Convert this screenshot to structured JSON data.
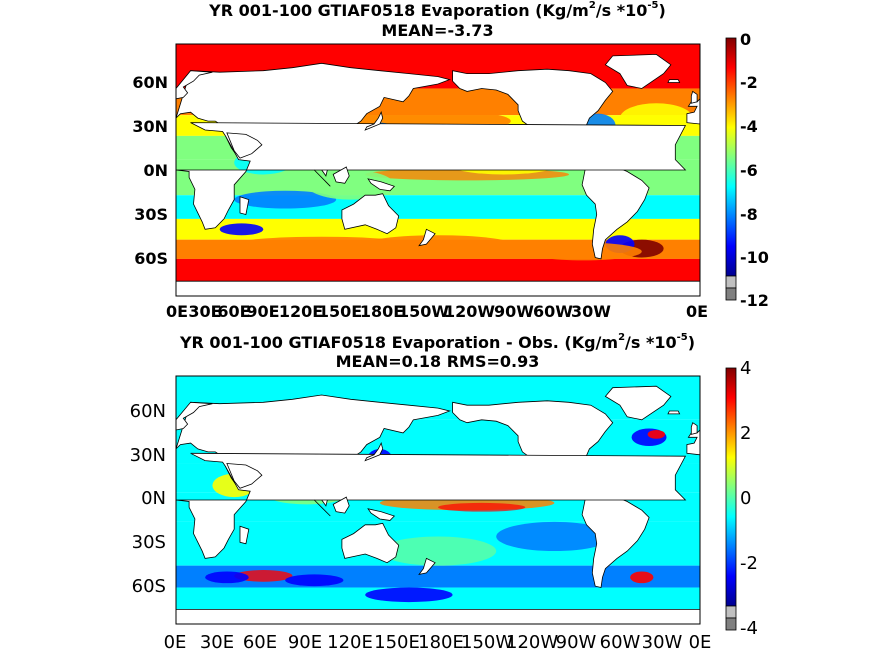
{
  "panel1": {
    "title_prefix": "YR 001-100 GTIAF0518  Evaporation (Kg/m",
    "title_sup1": "2",
    "title_mid": "/s *10",
    "title_sup2": "-5",
    "title_suffix": ")",
    "subtitle": "MEAN=-3.73",
    "lat_ticks": [
      "60N",
      "30N",
      "0N",
      "30S",
      "60S"
    ],
    "lon_ticks": [
      "0E",
      "30E",
      "60E",
      "90E",
      "120E",
      "150E",
      "180E",
      "150W",
      "120W",
      "90W",
      "60W",
      "30W",
      "0E"
    ],
    "colorbar_ticks": [
      "0",
      "-2",
      "-4",
      "-6",
      "-8",
      "-10",
      "-12"
    ]
  },
  "panel2": {
    "title_prefix": "YR 001-100 GTIAF0518 Evaporation - Obs. (Kg/m",
    "title_sup1": "2",
    "title_mid": "/s *10",
    "title_sup2": "-5",
    "title_suffix": ")",
    "subtitle": "MEAN=0.18   RMS=0.93",
    "lat_ticks": [
      "60N",
      "30N",
      "0N",
      "30S",
      "60S"
    ],
    "lon_ticks": [
      "0E",
      "30E",
      "60E",
      "90E",
      "120E",
      "150E",
      "180E",
      "150W",
      "120W",
      "90W",
      "60W",
      "30W",
      "0E"
    ],
    "colorbar_ticks": [
      "4",
      "2",
      "0",
      "-2",
      "-4"
    ]
  },
  "colors": {
    "jet": [
      "#00008f",
      "#0000ff",
      "#0080ff",
      "#00ffff",
      "#80ff80",
      "#ffff00",
      "#ff8000",
      "#ff0000",
      "#800000"
    ],
    "land": "#ffffff",
    "coast": "#000000",
    "missing": "#808080"
  }
}
